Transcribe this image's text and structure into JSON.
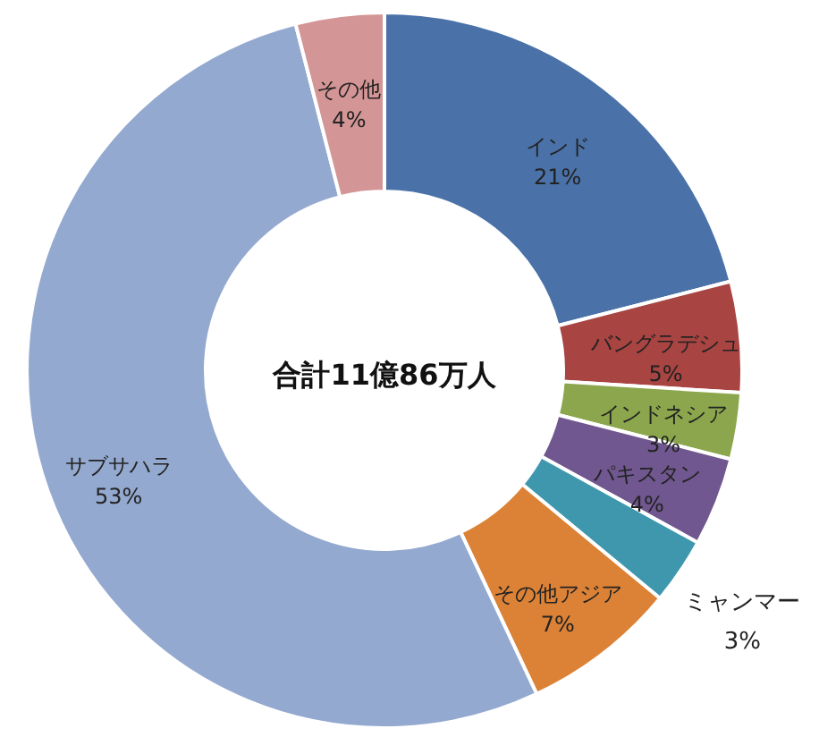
{
  "chart_data": {
    "type": "donut",
    "categories": [
      "インド",
      "バングラデシュ",
      "インドネシア",
      "パキスタン",
      "ミャンマー",
      "その他アジア",
      "サブサハラ",
      "その他"
    ],
    "values": [
      21,
      5,
      3,
      4,
      3,
      7,
      53,
      4
    ],
    "value_labels": [
      "21%",
      "5%",
      "3%",
      "4%",
      "3%",
      "7%",
      "53%",
      "4%"
    ],
    "colors": [
      "#4a72a8",
      "#a84442",
      "#8ba64c",
      "#70578f",
      "#3f97ae",
      "#dc8236",
      "#94a9cf",
      "#d39595"
    ],
    "annotations": [
      "合計11億86万人"
    ]
  }
}
